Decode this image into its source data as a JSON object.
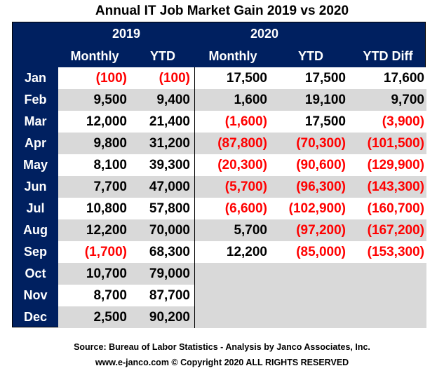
{
  "title": "Annual IT  Job Market  Gain 2019 vs 2020",
  "chart_data": {
    "type": "table",
    "title": "Annual IT  Job Market  Gain 2019 vs 2020",
    "group_headers": [
      "2019",
      "2020"
    ],
    "columns": [
      "Monthly",
      "YTD",
      "Monthly",
      "YTD",
      "YTD Diff"
    ],
    "rows": [
      {
        "month": "Jan",
        "v": [
          "(100)",
          "(100)",
          "17,500",
          "17,500",
          "17,600"
        ]
      },
      {
        "month": "Feb",
        "v": [
          "9,500",
          "9,400",
          "1,600",
          "19,100",
          "9,700"
        ]
      },
      {
        "month": "Mar",
        "v": [
          "12,000",
          "21,400",
          "(1,600)",
          "17,500",
          "(3,900)"
        ]
      },
      {
        "month": "Apr",
        "v": [
          "9,800",
          "31,200",
          "(87,800)",
          "(70,300)",
          "(101,500)"
        ]
      },
      {
        "month": "May",
        "v": [
          "8,100",
          "39,300",
          "(20,300)",
          "(90,600)",
          "(129,900)"
        ]
      },
      {
        "month": "Jun",
        "v": [
          "7,700",
          "47,000",
          "(5,700)",
          "(96,300)",
          "(143,300)"
        ]
      },
      {
        "month": "Jul",
        "v": [
          "10,800",
          "57,800",
          "(6,600)",
          "(102,900)",
          "(160,700)"
        ]
      },
      {
        "month": "Aug",
        "v": [
          "12,200",
          "70,000",
          "5,700",
          "(97,200)",
          "(167,200)"
        ]
      },
      {
        "month": "Sep",
        "v": [
          "(1,700)",
          "68,300",
          "12,200",
          "(85,000)",
          "(153,300)"
        ]
      },
      {
        "month": "Oct",
        "v": [
          "10,700",
          "79,000",
          "",
          "",
          ""
        ]
      },
      {
        "month": "Nov",
        "v": [
          "8,700",
          "87,700",
          "",
          "",
          ""
        ]
      },
      {
        "month": "Dec",
        "v": [
          "2,500",
          "90,200",
          "",
          "",
          ""
        ]
      }
    ],
    "colors": {
      "header": "#002060",
      "negative": "#ff0000",
      "stripe": "#d9d9d9"
    }
  },
  "footer": {
    "source": "Source: Bureau of Labor Statistics - Analysis by Janco Associates, Inc.",
    "copyright": "www.e-janco.com © Copyright 2020 ALL RIGHTS RESERVED"
  }
}
